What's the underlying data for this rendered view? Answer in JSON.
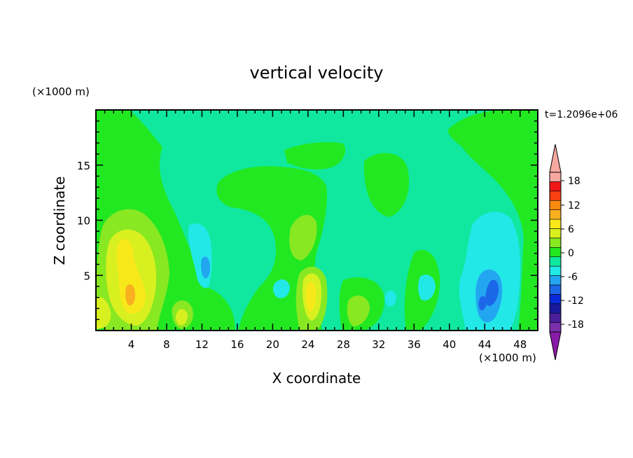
{
  "chart_data": {
    "type": "heatmap",
    "title": "vertical velocity",
    "xlabel": "X coordinate",
    "ylabel": "Z coordinate",
    "x_unit": "(×1000 m)",
    "z_unit": "(×1000 m)",
    "time_label": "t=1.2096e+06",
    "xlim": [
      0,
      50
    ],
    "zlim": [
      0,
      20
    ],
    "x_ticks": [
      "4",
      "8",
      "12",
      "16",
      "20",
      "24",
      "28",
      "32",
      "36",
      "40",
      "44",
      "48"
    ],
    "z_ticks": [
      "5",
      "10",
      "15"
    ],
    "colorbar": {
      "levels": [
        -21,
        -18,
        -15,
        -12,
        -9,
        -6,
        -3,
        0,
        3,
        6,
        9,
        12,
        15,
        18,
        21
      ],
      "tick_labels": [
        "18",
        "12",
        "6",
        "0",
        "-6",
        "-12",
        "-18"
      ],
      "colors": [
        "#7b2faa",
        "#4b1f9c",
        "#1a1a9e",
        "#0b2bd8",
        "#1c66e8",
        "#22a6f0",
        "#22e8e8",
        "#10e8a0",
        "#22e822",
        "#88e822",
        "#d8f020",
        "#f8e81a",
        "#f8b020",
        "#f88a10",
        "#f84010",
        "#f01818",
        "#f8a8a0"
      ],
      "under_color": "#8a1aa8",
      "over_color": "#f8a8a0"
    },
    "background_level": "0 to 3 (green-teal)",
    "features": [
      {
        "name": "updraft core",
        "x": 4,
        "z": 4,
        "value": 9
      },
      {
        "name": "updraft",
        "x": 24,
        "z": 3,
        "value": 9
      },
      {
        "name": "updraft",
        "x": 10,
        "z": 1.5,
        "value": 6
      },
      {
        "name": "updraft",
        "x": 21,
        "z": 8,
        "value": 6
      },
      {
        "name": "downdraft",
        "x": 44.5,
        "z": 3,
        "value": -12
      },
      {
        "name": "downdraft",
        "x": 12.5,
        "z": 5,
        "value": -6
      }
    ]
  }
}
